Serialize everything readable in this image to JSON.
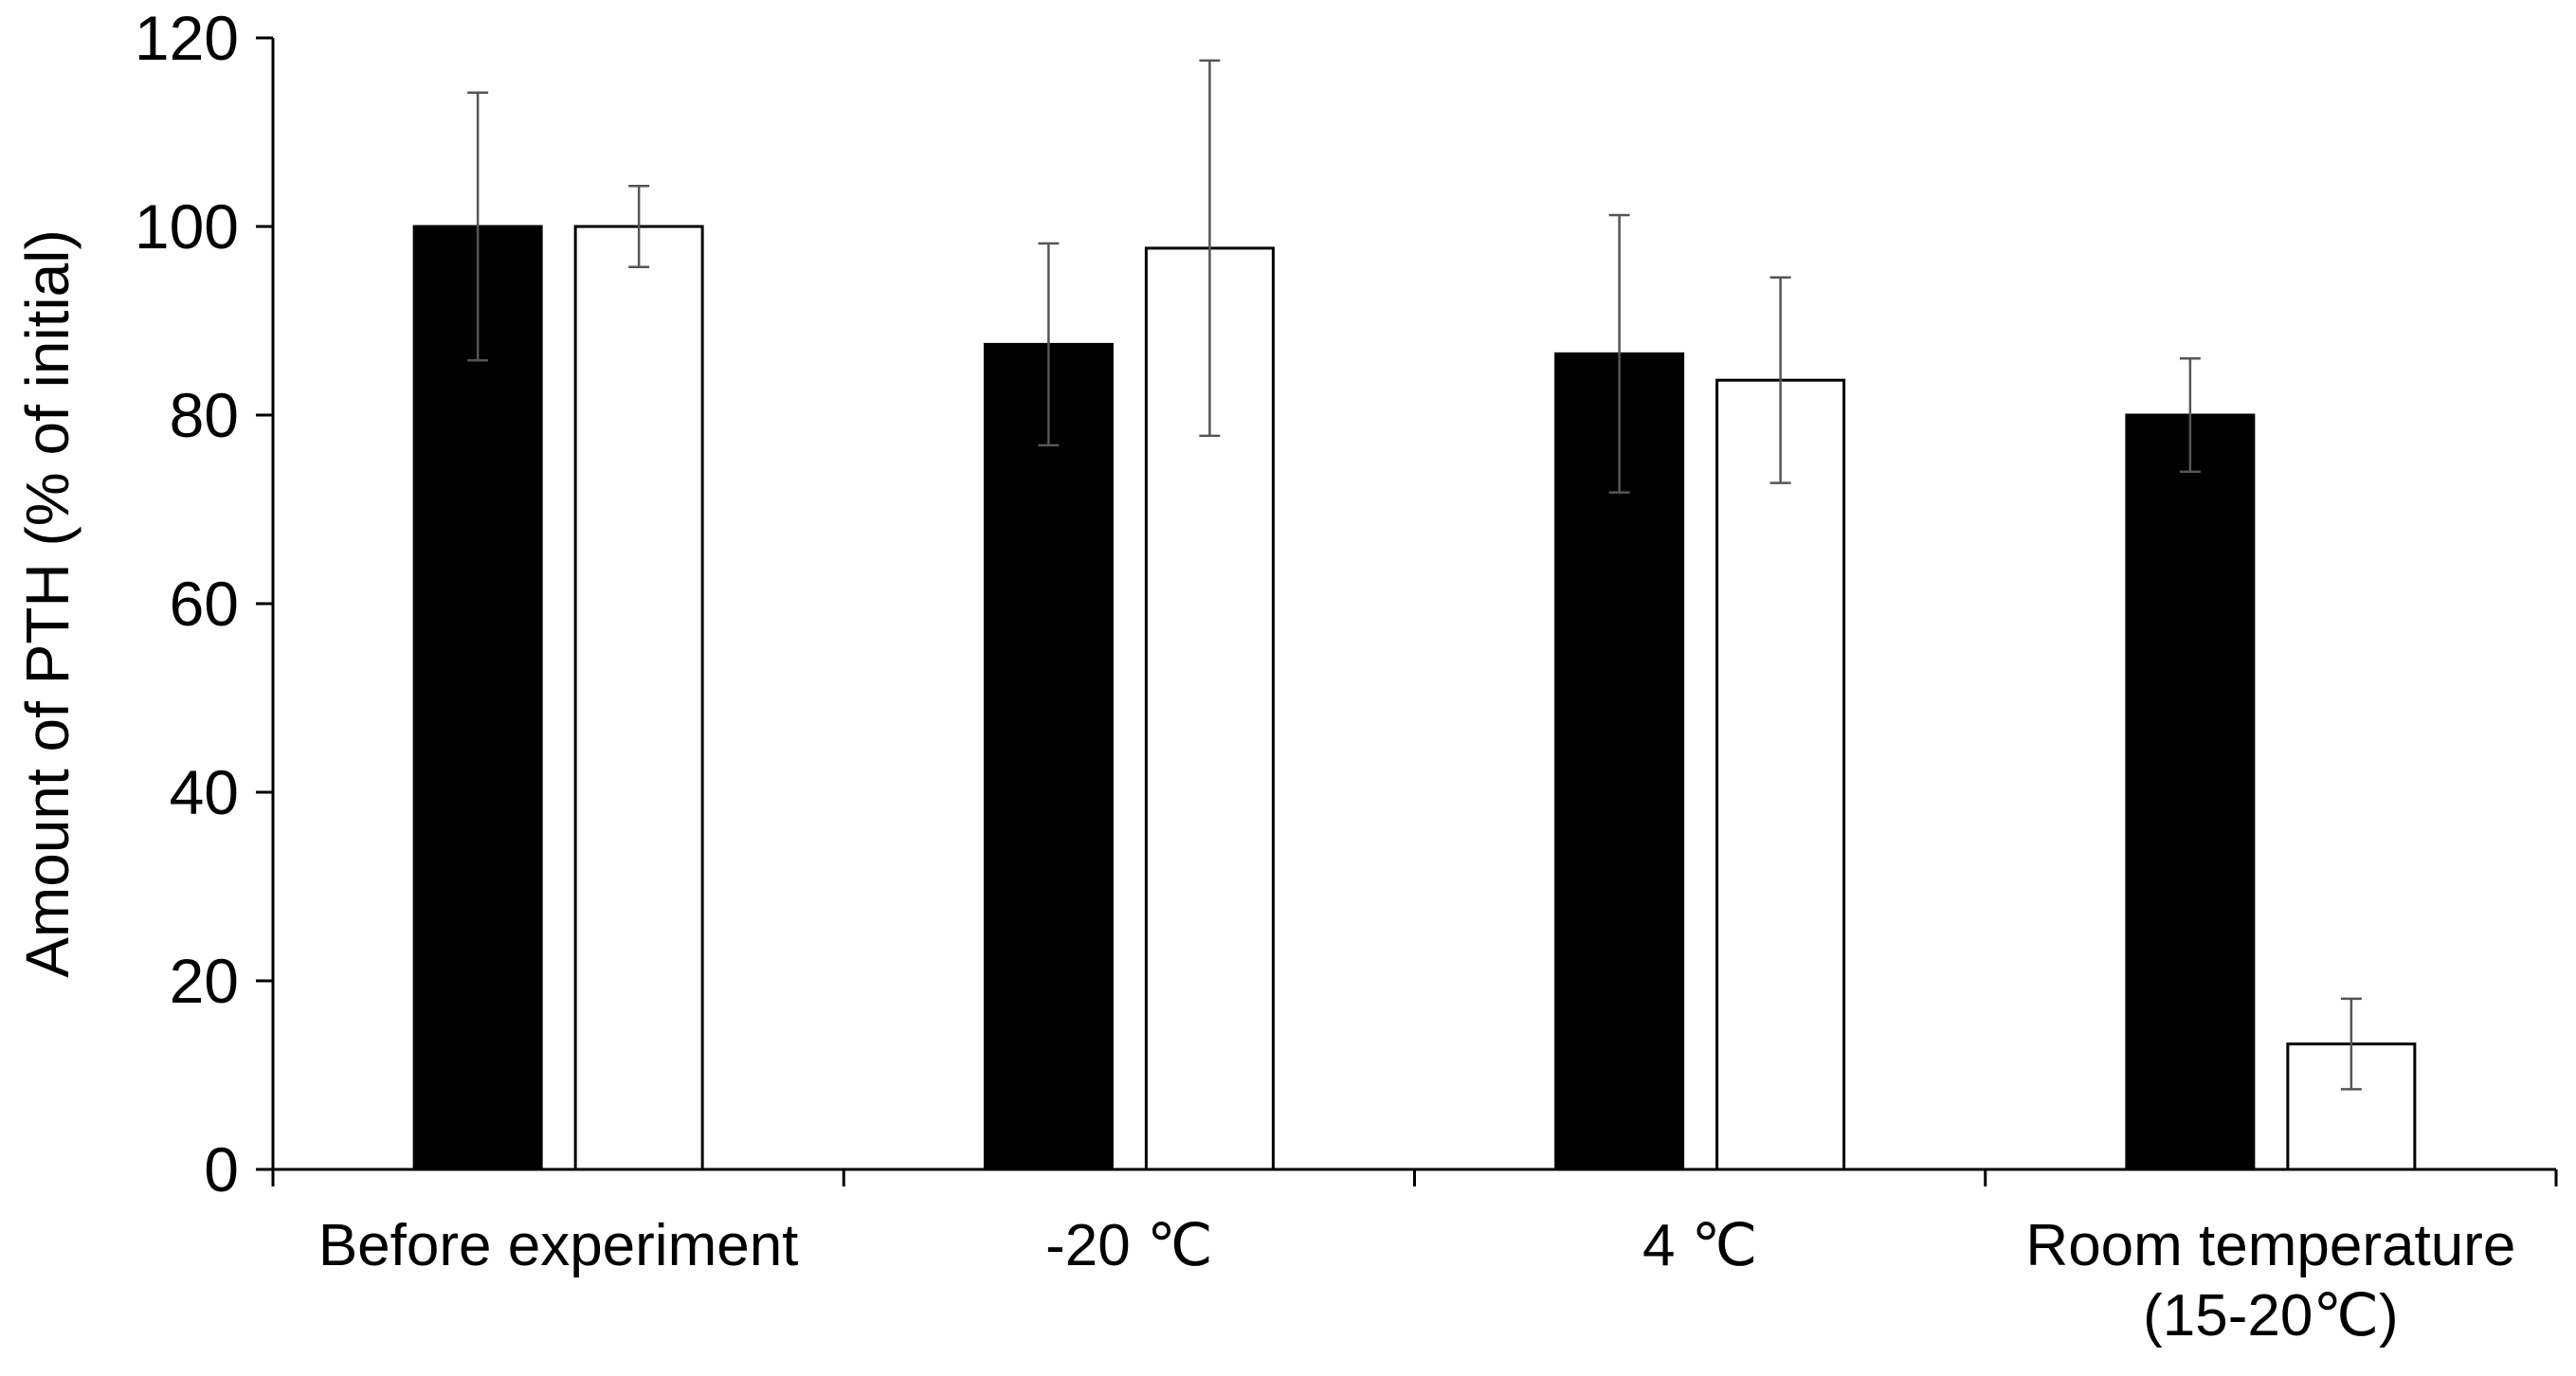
{
  "chart_data": {
    "type": "bar",
    "title": "",
    "xlabel": "",
    "ylabel": "Amount of PTH (% of initial)",
    "ylim": [
      0,
      120
    ],
    "yticks": [
      0,
      20,
      40,
      60,
      80,
      100,
      120
    ],
    "grid": false,
    "legend": "none",
    "categories": [
      [
        "Before experiment"
      ],
      [
        "-20 ℃"
      ],
      [
        "4 ℃"
      ],
      [
        "Room temperature",
        "(15-20℃)"
      ]
    ],
    "series": [
      {
        "fill": "#000000",
        "values": [
          100,
          87.5,
          86.5,
          80
        ],
        "errors": [
          14.2,
          10.7,
          14.7,
          6
        ]
      },
      {
        "fill": "#ffffff",
        "values": [
          100,
          97.7,
          83.7,
          13.3
        ],
        "errors": [
          4.3,
          19.9,
          10.9,
          4.8
        ]
      }
    ]
  }
}
